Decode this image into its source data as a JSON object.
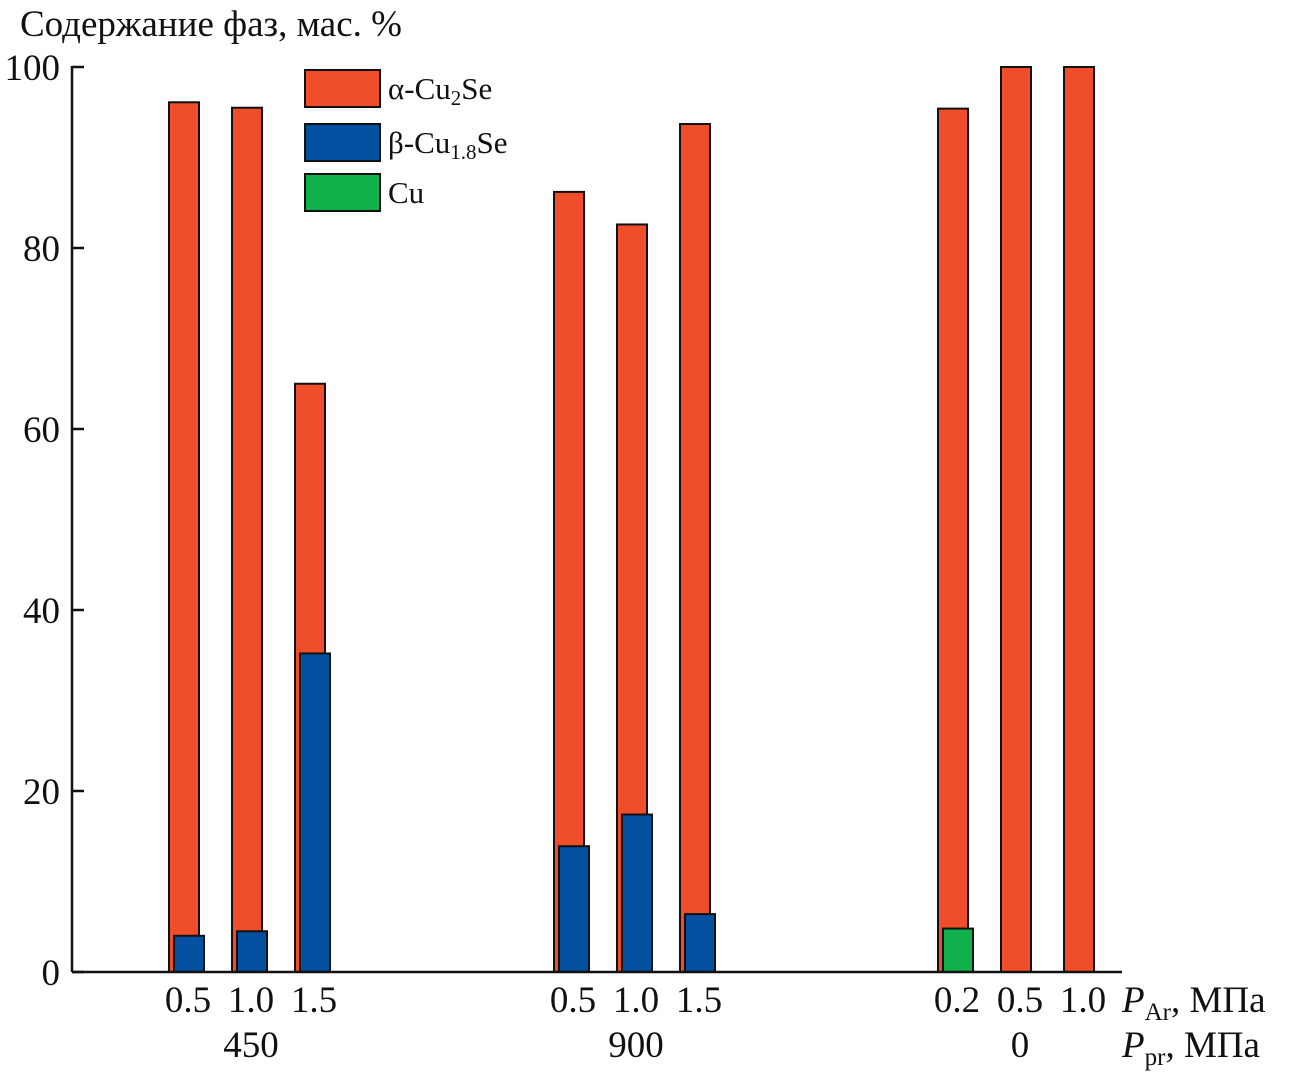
{
  "chart_data": {
    "type": "bar",
    "ylabel": "Содержание фаз,  мас. %",
    "ylim": [
      0,
      100
    ],
    "yticks": [
      "0",
      "20",
      "40",
      "60",
      "80",
      "100"
    ],
    "grid": false,
    "legend_placement": "top-left",
    "xlabel_rows": [
      {
        "symbol": "P",
        "sub": "Ar",
        "unit": ", МПа"
      },
      {
        "symbol": "P",
        "sub": "pr",
        "unit": ", МПа"
      }
    ],
    "groups": [
      {
        "label": "450",
        "categories": [
          "0.5",
          "1.0",
          "1.5"
        ]
      },
      {
        "label": "900",
        "categories": [
          "0.5",
          "1.0",
          "1.5"
        ]
      },
      {
        "label": "0",
        "categories": [
          "0.2",
          "0.5",
          "1.0"
        ]
      }
    ],
    "series": [
      {
        "name": "α-Cu2Se",
        "legend_main": "α-Cu",
        "legend_sub": "2",
        "legend_tail": "Se",
        "color": "#F04E2A",
        "values": [
          96.1,
          95.5,
          65.0,
          86.2,
          82.6,
          93.7,
          95.4,
          100,
          100
        ]
      },
      {
        "name": "β-Cu1.8Se",
        "legend_main": "β-Cu",
        "legend_sub": "1.8",
        "legend_tail": "Se",
        "color": "#0450A0",
        "values": [
          4.0,
          4.5,
          35.2,
          13.9,
          17.4,
          6.4,
          null,
          null,
          null
        ]
      },
      {
        "name": "Cu",
        "legend_main": "Cu",
        "legend_sub": "",
        "legend_tail": "",
        "color": "#10B04A",
        "values": [
          null,
          null,
          null,
          null,
          null,
          null,
          4.8,
          null,
          null
        ]
      }
    ]
  }
}
